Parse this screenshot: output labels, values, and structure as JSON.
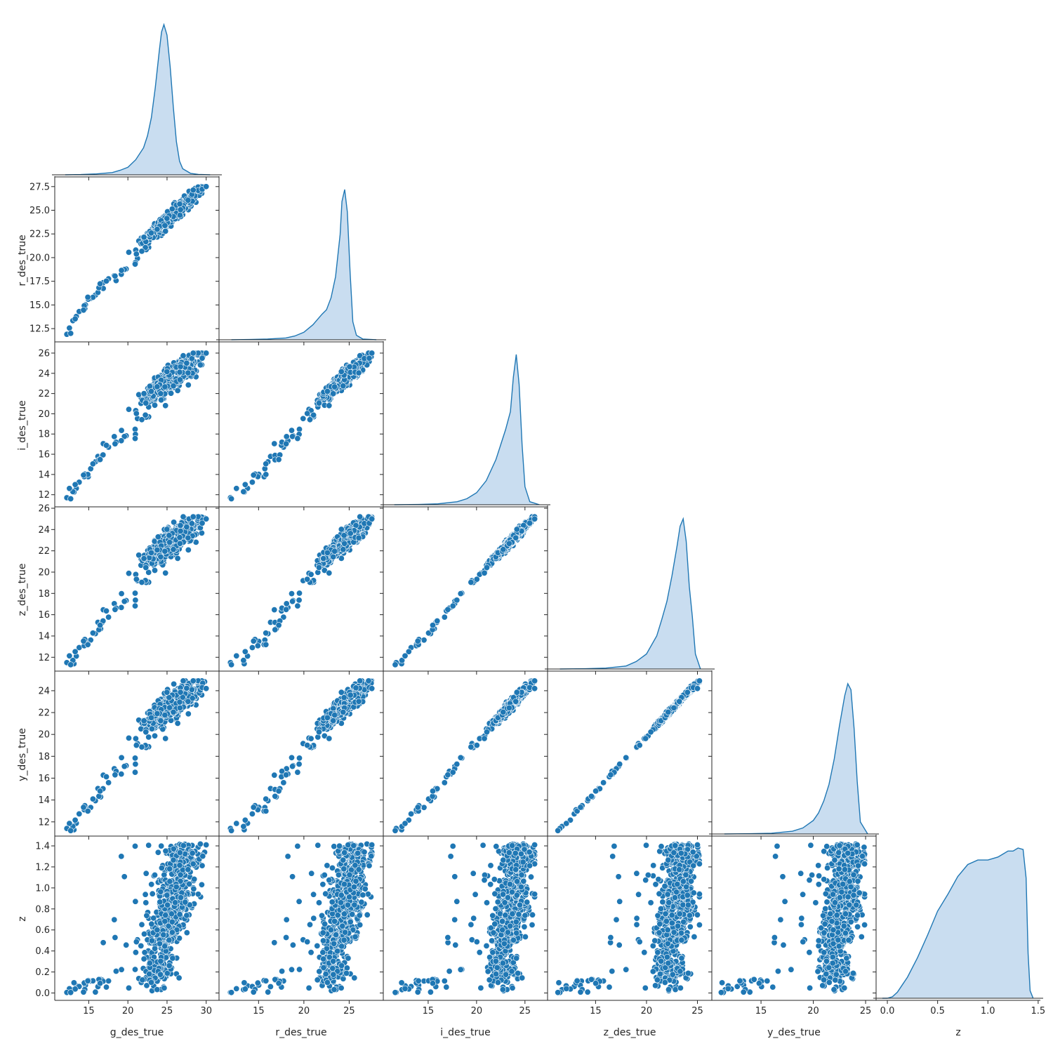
{
  "chart_data": {
    "type": "scatter",
    "layout": "pairplot-lower-triangle",
    "variables": [
      "g_des_true",
      "r_des_true",
      "i_des_true",
      "z_des_true",
      "y_des_true",
      "z"
    ],
    "axis_labels": {
      "x": [
        "g_des_true",
        "r_des_true",
        "i_des_true",
        "z_des_true",
        "y_des_true",
        "z"
      ],
      "y": [
        "",
        "r_des_true",
        "i_des_true",
        "z_des_true",
        "y_des_true",
        "z"
      ]
    },
    "ranges": {
      "g_des_true": [
        11.2,
        31.1
      ],
      "r_des_true": [
        11.1,
        28.3
      ],
      "i_des_true": [
        10.8,
        26.9
      ],
      "z_des_true": [
        10.7,
        26.0
      ],
      "y_des_true": [
        10.7,
        25.6
      ],
      "z": [
        -0.07,
        1.48
      ]
    },
    "ticks": {
      "g_des_true": [
        15,
        20,
        25,
        30
      ],
      "r_des_true": [
        15,
        20,
        25
      ],
      "i_des_true": [
        15,
        20,
        25
      ],
      "z_des_true": [
        15,
        20,
        25
      ],
      "y_des_true": [
        15,
        20,
        25
      ],
      "z": [
        0.0,
        0.5,
        1.0,
        1.5
      ]
    },
    "y_ticks": {
      "r_des_true": [
        "12.5",
        "15.0",
        "17.5",
        "20.0",
        "22.5",
        "25.0",
        "27.5"
      ],
      "i_des_true": [
        "12",
        "14",
        "16",
        "18",
        "20",
        "22",
        "24",
        "26"
      ],
      "z_des_true": [
        "12",
        "14",
        "16",
        "18",
        "20",
        "22",
        "24",
        "26"
      ],
      "y_des_true": [
        "12",
        "14",
        "16",
        "18",
        "20",
        "22",
        "24"
      ],
      "z": [
        "0.0",
        "0.2",
        "0.4",
        "0.6",
        "0.8",
        "1.0",
        "1.2",
        "1.4"
      ]
    },
    "x_ticks": {
      "g_des_true": [
        "15",
        "20",
        "25",
        "30"
      ],
      "r_des_true": [
        "15",
        "20",
        "25"
      ],
      "i_des_true": [
        "15",
        "20",
        "25"
      ],
      "z_des_true": [
        "15",
        "20",
        "25"
      ],
      "y_des_true": [
        "15",
        "20",
        "25"
      ],
      "z": [
        "0.0",
        "0.5",
        "1.0",
        "1.5"
      ]
    },
    "diagonal_kde": {
      "g_des_true": {
        "x": [
          12,
          14,
          16,
          18,
          19,
          20,
          21,
          22,
          22.5,
          23,
          23.5,
          24,
          24.3,
          24.6,
          25,
          25.4,
          25.8,
          26.2,
          26.6,
          27,
          28,
          29,
          30.5
        ],
        "density": [
          0.0,
          0.002,
          0.006,
          0.015,
          0.03,
          0.05,
          0.1,
          0.18,
          0.26,
          0.38,
          0.58,
          0.82,
          0.95,
          1.0,
          0.93,
          0.72,
          0.45,
          0.22,
          0.09,
          0.04,
          0.01,
          0.003,
          0.0
        ]
      },
      "r_des_true": {
        "x": [
          12,
          14,
          16,
          18,
          19,
          20,
          21,
          22,
          22.5,
          23,
          23.5,
          24,
          24.2,
          24.5,
          24.8,
          25.1,
          25.4,
          25.8,
          26.5,
          28
        ],
        "density": [
          0.0,
          0.002,
          0.005,
          0.012,
          0.025,
          0.05,
          0.1,
          0.17,
          0.2,
          0.28,
          0.42,
          0.7,
          0.92,
          1.0,
          0.85,
          0.45,
          0.12,
          0.03,
          0.005,
          0.0
        ]
      },
      "i_des_true": {
        "x": [
          11.5,
          14,
          16,
          18,
          19,
          20,
          21,
          22,
          22.5,
          23,
          23.5,
          23.8,
          24.1,
          24.4,
          24.7,
          25,
          25.5,
          26.5
        ],
        "density": [
          0.0,
          0.002,
          0.006,
          0.02,
          0.04,
          0.08,
          0.16,
          0.3,
          0.4,
          0.5,
          0.62,
          0.85,
          1.0,
          0.8,
          0.4,
          0.12,
          0.02,
          0.0
        ]
      },
      "z_des_true": {
        "x": [
          11.5,
          14,
          16,
          18,
          19,
          20,
          21,
          21.5,
          22,
          22.5,
          23,
          23.3,
          23.6,
          23.9,
          24.2,
          24.5,
          24.8,
          25.3
        ],
        "density": [
          0.0,
          0.002,
          0.006,
          0.02,
          0.05,
          0.1,
          0.22,
          0.33,
          0.45,
          0.62,
          0.82,
          0.95,
          1.0,
          0.85,
          0.55,
          0.35,
          0.1,
          0.0
        ]
      },
      "y_des_true": {
        "x": [
          11.5,
          14,
          16,
          18,
          19,
          20,
          20.5,
          21,
          21.5,
          22,
          22.5,
          23,
          23.3,
          23.6,
          23.9,
          24.2,
          24.5,
          25.2
        ],
        "density": [
          0.0,
          0.002,
          0.005,
          0.018,
          0.04,
          0.09,
          0.14,
          0.22,
          0.33,
          0.5,
          0.72,
          0.92,
          1.0,
          0.96,
          0.7,
          0.35,
          0.08,
          0.0
        ]
      },
      "z": {
        "x": [
          -0.05,
          0.0,
          0.05,
          0.1,
          0.15,
          0.2,
          0.3,
          0.4,
          0.5,
          0.6,
          0.7,
          0.8,
          0.9,
          1.0,
          1.1,
          1.15,
          1.2,
          1.25,
          1.3,
          1.35,
          1.38,
          1.4,
          1.42,
          1.45
        ],
        "density": [
          0.0,
          0.0,
          0.01,
          0.04,
          0.09,
          0.14,
          0.27,
          0.42,
          0.58,
          0.69,
          0.81,
          0.89,
          0.92,
          0.92,
          0.94,
          0.96,
          0.98,
          0.98,
          1.0,
          0.99,
          0.8,
          0.3,
          0.05,
          0.0
        ]
      }
    },
    "color": "#1f77b4",
    "kde_fill": "#c6dbef",
    "grid": false,
    "legend": false
  }
}
